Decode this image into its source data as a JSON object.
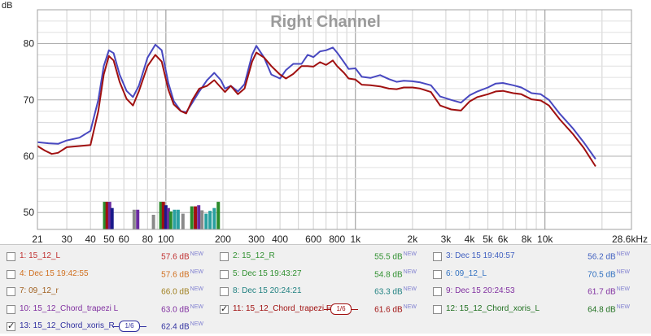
{
  "chart_data": {
    "type": "line",
    "title": "Right Channel",
    "ylabel": "dB",
    "xlim": [
      21,
      28600
    ],
    "ylim": [
      47,
      86
    ],
    "x_scale": "log",
    "grid": true,
    "x_ticks": [
      {
        "v": 21,
        "label": "21"
      },
      {
        "v": 30,
        "label": "30"
      },
      {
        "v": 40,
        "label": "40"
      },
      {
        "v": 50,
        "label": "50"
      },
      {
        "v": 60,
        "label": "60"
      },
      {
        "v": 80,
        "label": "80"
      },
      {
        "v": 100,
        "label": "100"
      },
      {
        "v": 200,
        "label": "200"
      },
      {
        "v": 300,
        "label": "300"
      },
      {
        "v": 400,
        "label": "400"
      },
      {
        "v": 600,
        "label": "600"
      },
      {
        "v": 800,
        "label": "800"
      },
      {
        "v": 1000,
        "label": "1k"
      },
      {
        "v": 2000,
        "label": "2k"
      },
      {
        "v": 3000,
        "label": "3k"
      },
      {
        "v": 4000,
        "label": "4k"
      },
      {
        "v": 5000,
        "label": "5k"
      },
      {
        "v": 6000,
        "label": "6k"
      },
      {
        "v": 8000,
        "label": "8k"
      },
      {
        "v": 10000,
        "label": "10k"
      },
      {
        "v": 28600,
        "label": "28.6kHz"
      }
    ],
    "y_ticks": [
      50,
      60,
      70,
      80
    ],
    "series": [
      {
        "color": "#4848c0",
        "points": [
          [
            21,
            62.5
          ],
          [
            24,
            62.3
          ],
          [
            27,
            62.2
          ],
          [
            30,
            62.8
          ],
          [
            35,
            63.3
          ],
          [
            40,
            64.5
          ],
          [
            44,
            70
          ],
          [
            47,
            76
          ],
          [
            50,
            78.8
          ],
          [
            53,
            78.3
          ],
          [
            57,
            74.5
          ],
          [
            62,
            71.6
          ],
          [
            67,
            70.5
          ],
          [
            72,
            72.5
          ],
          [
            80,
            77.5
          ],
          [
            88,
            79.8
          ],
          [
            95,
            78.8
          ],
          [
            103,
            73
          ],
          [
            110,
            69.8
          ],
          [
            120,
            68
          ],
          [
            128,
            67.8
          ],
          [
            138,
            69.5
          ],
          [
            150,
            71.5
          ],
          [
            165,
            73.5
          ],
          [
            180,
            74.8
          ],
          [
            195,
            73.5
          ],
          [
            205,
            72
          ],
          [
            220,
            72.5
          ],
          [
            240,
            71.5
          ],
          [
            260,
            72.8
          ],
          [
            285,
            78
          ],
          [
            300,
            79.6
          ],
          [
            330,
            77.5
          ],
          [
            360,
            74.5
          ],
          [
            400,
            73.8
          ],
          [
            430,
            75.3
          ],
          [
            470,
            76.4
          ],
          [
            520,
            76.4
          ],
          [
            560,
            78
          ],
          [
            600,
            77.6
          ],
          [
            650,
            78.6
          ],
          [
            700,
            78.8
          ],
          [
            760,
            79.3
          ],
          [
            800,
            78.4
          ],
          [
            870,
            76.7
          ],
          [
            920,
            75.5
          ],
          [
            1000,
            75.6
          ],
          [
            1080,
            74.1
          ],
          [
            1200,
            73.9
          ],
          [
            1350,
            74.4
          ],
          [
            1500,
            73.7
          ],
          [
            1650,
            73.2
          ],
          [
            1800,
            73.4
          ],
          [
            2000,
            73.3
          ],
          [
            2200,
            73.1
          ],
          [
            2500,
            72.6
          ],
          [
            2800,
            70.6
          ],
          [
            3200,
            70
          ],
          [
            3600,
            69.5
          ],
          [
            4000,
            70.8
          ],
          [
            4400,
            71.5
          ],
          [
            5000,
            72.2
          ],
          [
            5500,
            72.9
          ],
          [
            6000,
            73
          ],
          [
            6800,
            72.6
          ],
          [
            7500,
            72.2
          ],
          [
            8500,
            71.2
          ],
          [
            9500,
            71
          ],
          [
            10500,
            70
          ],
          [
            12000,
            67.5
          ],
          [
            14000,
            65
          ],
          [
            16000,
            62.5
          ],
          [
            18500,
            59.5
          ]
        ]
      },
      {
        "color": "#a01010",
        "points": [
          [
            21,
            61.8
          ],
          [
            23,
            61
          ],
          [
            25,
            60.4
          ],
          [
            27,
            60.6
          ],
          [
            30,
            61.6
          ],
          [
            35,
            61.8
          ],
          [
            40,
            62
          ],
          [
            44,
            68
          ],
          [
            47,
            74.5
          ],
          [
            50,
            77.8
          ],
          [
            53,
            77
          ],
          [
            57,
            73.2
          ],
          [
            62,
            70.2
          ],
          [
            67,
            69
          ],
          [
            72,
            71.5
          ],
          [
            80,
            76
          ],
          [
            88,
            78
          ],
          [
            95,
            76.8
          ],
          [
            103,
            71.8
          ],
          [
            110,
            69.2
          ],
          [
            120,
            68
          ],
          [
            128,
            67.6
          ],
          [
            138,
            70
          ],
          [
            150,
            72
          ],
          [
            165,
            72.5
          ],
          [
            180,
            73.5
          ],
          [
            195,
            72.2
          ],
          [
            205,
            71.4
          ],
          [
            220,
            72.5
          ],
          [
            240,
            71
          ],
          [
            260,
            72
          ],
          [
            285,
            76.8
          ],
          [
            300,
            78.4
          ],
          [
            330,
            77.5
          ],
          [
            360,
            76
          ],
          [
            400,
            74.5
          ],
          [
            430,
            73.8
          ],
          [
            470,
            74.6
          ],
          [
            520,
            76
          ],
          [
            560,
            76
          ],
          [
            600,
            75.9
          ],
          [
            650,
            76.7
          ],
          [
            700,
            76.2
          ],
          [
            760,
            77
          ],
          [
            800,
            76
          ],
          [
            870,
            74.8
          ],
          [
            920,
            73.8
          ],
          [
            1000,
            73.6
          ],
          [
            1080,
            72.7
          ],
          [
            1200,
            72.6
          ],
          [
            1350,
            72.4
          ],
          [
            1500,
            72
          ],
          [
            1650,
            71.9
          ],
          [
            1800,
            72.2
          ],
          [
            2000,
            72.2
          ],
          [
            2200,
            72
          ],
          [
            2500,
            71.4
          ],
          [
            2800,
            69
          ],
          [
            3200,
            68.3
          ],
          [
            3600,
            68.1
          ],
          [
            4000,
            69.7
          ],
          [
            4400,
            70.5
          ],
          [
            5000,
            71
          ],
          [
            5500,
            71.5
          ],
          [
            6000,
            71.6
          ],
          [
            6800,
            71.2
          ],
          [
            7500,
            71
          ],
          [
            8500,
            70.1
          ],
          [
            9500,
            69.9
          ],
          [
            10500,
            69
          ],
          [
            12000,
            66.5
          ],
          [
            14000,
            64
          ],
          [
            16000,
            61.5
          ],
          [
            18500,
            58.2
          ]
        ]
      }
    ],
    "bars": [
      {
        "f": 47.5,
        "top": 51.9,
        "color": "#2a8a2a"
      },
      {
        "f": 49,
        "top": 51.9,
        "color": "#a01010"
      },
      {
        "f": 50.5,
        "top": 51.9,
        "color": "#6a2aa0"
      },
      {
        "f": 52,
        "top": 50.8,
        "color": "#1a1a8a"
      },
      {
        "f": 68,
        "top": 50.5,
        "color": "#8a8a8a"
      },
      {
        "f": 71,
        "top": 50.5,
        "color": "#6a2aa0"
      },
      {
        "f": 86,
        "top": 49.6,
        "color": "#8a8a8a"
      },
      {
        "f": 94,
        "top": 51.9,
        "color": "#2a8a2a"
      },
      {
        "f": 97,
        "top": 51.9,
        "color": "#a01010"
      },
      {
        "f": 100,
        "top": 51.3,
        "color": "#1a1a8a"
      },
      {
        "f": 103,
        "top": 50.8,
        "color": "#6a2aa0"
      },
      {
        "f": 106,
        "top": 50.2,
        "color": "#2a8a2a"
      },
      {
        "f": 111,
        "top": 50.5,
        "color": "#2aa0a0"
      },
      {
        "f": 116,
        "top": 50.5,
        "color": "#2aa0a0"
      },
      {
        "f": 123,
        "top": 49.8,
        "color": "#8a8a8a"
      },
      {
        "f": 137,
        "top": 51.1,
        "color": "#2a8a2a"
      },
      {
        "f": 143,
        "top": 51.1,
        "color": "#a01010"
      },
      {
        "f": 149,
        "top": 51.3,
        "color": "#6a2aa0"
      },
      {
        "f": 155,
        "top": 50.4,
        "color": "#8a8a8a"
      },
      {
        "f": 163,
        "top": 49.8,
        "color": "#2aa0a0"
      },
      {
        "f": 171,
        "top": 50.3,
        "color": "#2aa0a0"
      },
      {
        "f": 180,
        "top": 50.8,
        "color": "#2aa0a0"
      },
      {
        "f": 189,
        "top": 51.9,
        "color": "#2a8a2a"
      }
    ]
  },
  "legend": [
    {
      "id": "1",
      "label": "1: 15_12_L",
      "value": "57.6 dB",
      "new": "NEW",
      "color": "#c03030",
      "vcolor": "#c03030",
      "checked": false
    },
    {
      "id": "2",
      "label": "2: 15_12_R",
      "value": "55.5 dB",
      "new": "NEW",
      "color": "#309030",
      "vcolor": "#309030",
      "checked": false
    },
    {
      "id": "3",
      "label": "3: Dec 15 19:40:57",
      "value": "56.2 dB",
      "new": "NEW",
      "color": "#4060c0",
      "vcolor": "#4060c0",
      "checked": false
    },
    {
      "id": "4",
      "label": "4: Dec 15 19:42:55",
      "value": "57.6 dB",
      "new": "NEW",
      "color": "#d07020",
      "vcolor": "#d07020",
      "checked": false
    },
    {
      "id": "5",
      "label": "5: Dec 15 19:43:27",
      "value": "54.8 dB",
      "new": "NEW",
      "color": "#309030",
      "vcolor": "#309030",
      "checked": false
    },
    {
      "id": "6",
      "label": "6: 09_12_L",
      "value": "70.5 dB",
      "new": "NEW",
      "color": "#3070c0",
      "vcolor": "#3070c0",
      "checked": false
    },
    {
      "id": "7",
      "label": "7: 09_12_r",
      "value": "66.0 dB",
      "new": "NEW",
      "color": "#a06020",
      "vcolor": "#a08020",
      "checked": false
    },
    {
      "id": "8",
      "label": "8: Dec 15 20:24:21",
      "value": "63.3 dB",
      "new": "NEW",
      "color": "#208080",
      "vcolor": "#208080",
      "checked": false
    },
    {
      "id": "9",
      "label": "9: Dec 15 20:24:53",
      "value": "61.7 dB",
      "new": "NEW",
      "color": "#8030a0",
      "vcolor": "#8030a0",
      "checked": false
    },
    {
      "id": "10",
      "label": "10: 15_12_Chord_trapezi L",
      "value": "63.0 dB",
      "new": "NEW",
      "color": "#8030a0",
      "vcolor": "#8030a0",
      "checked": false
    },
    {
      "id": "11",
      "label": "11: 15_12_Chord_trapezi F",
      "value": "61.6 dB",
      "new": "NEW",
      "color": "#a01010",
      "vcolor": "#a01010",
      "checked": true,
      "smoothing": "1/6"
    },
    {
      "id": "12",
      "label": "12: 15_12_Chord_xoris_L",
      "value": "64.8 dB",
      "new": "NEW",
      "color": "#207020",
      "vcolor": "#207020",
      "checked": false
    },
    {
      "id": "13",
      "label": "13: 15_12_Chord_xoris_R",
      "value": "62.4 dB",
      "new": "NEW",
      "color": "#3030a0",
      "vcolor": "#3030a0",
      "checked": true,
      "smoothing": "1/6"
    }
  ]
}
